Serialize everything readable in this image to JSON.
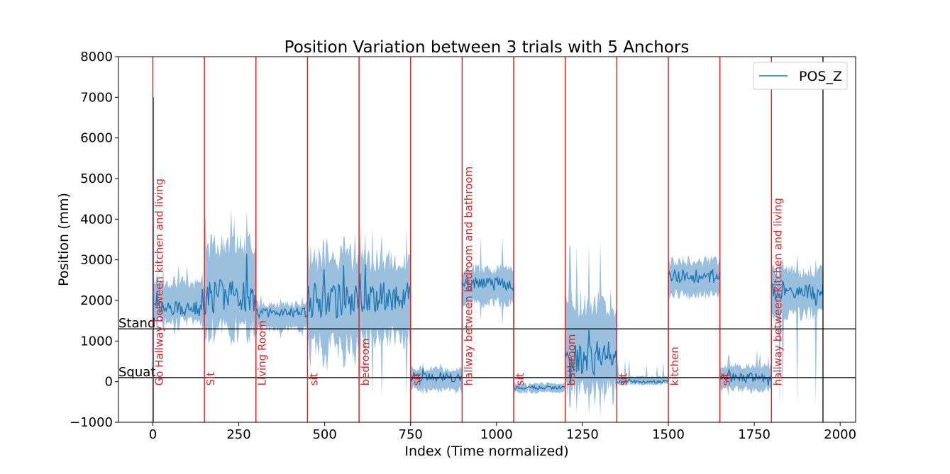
{
  "chart_data": {
    "type": "line",
    "title": "Position Variation between 3 trials with 5 Anchors",
    "xlabel": "Index (Time normalized)",
    "ylabel": "Position (mm)",
    "xlim": [
      -100,
      2045
    ],
    "ylim": [
      -1000,
      8000
    ],
    "xticks": [
      0,
      250,
      500,
      750,
      1000,
      1250,
      1500,
      1750,
      2000
    ],
    "yticks": [
      -1000,
      0,
      1000,
      2000,
      3000,
      4000,
      5000,
      6000,
      7000,
      8000
    ],
    "grid": false,
    "legend": {
      "placement": "top-right",
      "entries": [
        "POS_Z"
      ]
    },
    "series": [
      {
        "name": "POS_Z",
        "color": "#1f77b4",
        "band_color": "#8fb9da",
        "segments": [
          {
            "x": [
              0,
              150
            ],
            "mean": 1800,
            "band_low": 1300,
            "band_high": 2600,
            "spike_low": 1050,
            "spike_high": 2900
          },
          {
            "x": [
              150,
              300
            ],
            "mean": 2100,
            "band_low": 900,
            "band_high": 3700,
            "spike_low": 750,
            "spike_high": 4300
          },
          {
            "x": [
              300,
              450
            ],
            "mean": 1700,
            "band_low": 1200,
            "band_high": 2000,
            "spike_low": 950,
            "spike_high": 2200
          },
          {
            "x": [
              450,
              600
            ],
            "mean": 2000,
            "band_low": 500,
            "band_high": 3400,
            "spike_low": 200,
            "spike_high": 3700
          },
          {
            "x": [
              600,
              750
            ],
            "mean": 2100,
            "band_low": 800,
            "band_high": 3300,
            "spike_low": -500,
            "spike_high": 3900
          },
          {
            "x": [
              750,
              900
            ],
            "mean": 100,
            "band_low": -300,
            "band_high": 400,
            "spike_low": -350,
            "spike_high": 600
          },
          {
            "x": [
              900,
              1050
            ],
            "mean": 2400,
            "band_low": 1800,
            "band_high": 2900,
            "spike_low": 1300,
            "spike_high": 3800
          },
          {
            "x": [
              1050,
              1200
            ],
            "mean": -150,
            "band_low": -300,
            "band_high": 0,
            "spike_low": -350,
            "spike_high": 100
          },
          {
            "x": [
              1200,
              1350
            ],
            "mean": 600,
            "band_low": -600,
            "band_high": 2300,
            "spike_low": -900,
            "spike_high": 3500
          },
          {
            "x": [
              1350,
              1500
            ],
            "mean": 0,
            "band_low": -100,
            "band_high": 150,
            "spike_low": -200,
            "spike_high": 600
          },
          {
            "x": [
              1500,
              1650
            ],
            "mean": 2600,
            "band_low": 2000,
            "band_high": 3100,
            "spike_low": 1600,
            "spike_high": 3500
          },
          {
            "x": [
              1650,
              1800
            ],
            "mean": 100,
            "band_low": -300,
            "band_high": 500,
            "spike_low": -400,
            "spike_high": 800
          },
          {
            "x": [
              1800,
              1950
            ],
            "mean": 2200,
            "band_low": 1500,
            "band_high": 2900,
            "spike_low": -800,
            "spike_high": 3300
          }
        ]
      }
    ],
    "reference_lines": [
      {
        "label": "Stand",
        "y": 1300,
        "color": "#000000"
      },
      {
        "label": "Squat",
        "y": 100,
        "color": "#000000"
      }
    ],
    "end_line": {
      "x": 1950,
      "color": "#000000"
    },
    "annotations": [
      {
        "x": 0,
        "label": "Go Hallway between kitchen and living"
      },
      {
        "x": 150,
        "label": "Sit"
      },
      {
        "x": 300,
        "label": "Living Room"
      },
      {
        "x": 450,
        "label": "sit"
      },
      {
        "x": 600,
        "label": "bedroom"
      },
      {
        "x": 750,
        "label": "sit"
      },
      {
        "x": 900,
        "label": "hallway between bedroom and bathroom"
      },
      {
        "x": 1050,
        "label": "sit"
      },
      {
        "x": 1200,
        "label": "bathroom"
      },
      {
        "x": 1350,
        "label": "sit"
      },
      {
        "x": 1500,
        "label": "kitchen"
      },
      {
        "x": 1650,
        "label": "sit"
      },
      {
        "x": 1800,
        "label": "hallway between kitchen and living"
      }
    ],
    "annotation_color": "#d62728"
  }
}
